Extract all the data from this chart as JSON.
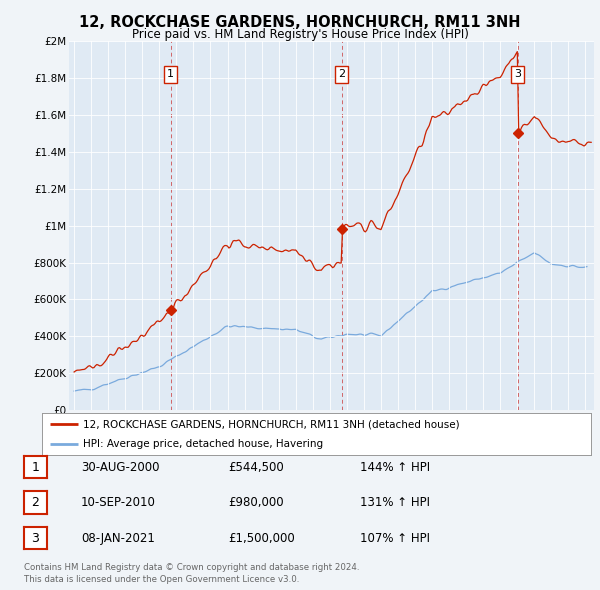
{
  "title": "12, ROCKCHASE GARDENS, HORNCHURCH, RM11 3NH",
  "subtitle": "Price paid vs. HM Land Registry's House Price Index (HPI)",
  "background_color": "#f0f4f8",
  "plot_bg": "#e0eaf4",
  "sale_dates": [
    2000.664,
    2010.692,
    2021.022
  ],
  "sale_prices": [
    544500,
    980000,
    1500000
  ],
  "sale_labels": [
    "1",
    "2",
    "3"
  ],
  "sale_date_strings": [
    "30-AUG-2000",
    "10-SEP-2010",
    "08-JAN-2021"
  ],
  "sale_price_strings": [
    "£544,500",
    "£980,000",
    "£1,500,000"
  ],
  "sale_hpi_strings": [
    "144%",
    "131%",
    "107%"
  ],
  "legend_line1": "12, ROCKCHASE GARDENS, HORNCHURCH, RM11 3NH (detached house)",
  "legend_line2": "HPI: Average price, detached house, Havering",
  "footer1": "Contains HM Land Registry data © Crown copyright and database right 2024.",
  "footer2": "This data is licensed under the Open Government Licence v3.0.",
  "red_color": "#cc2200",
  "blue_color": "#7aaadd",
  "ylim": [
    0,
    2000000
  ],
  "xlim": [
    1994.7,
    2025.5
  ],
  "yticks": [
    0,
    200000,
    400000,
    600000,
    800000,
    1000000,
    1200000,
    1400000,
    1600000,
    1800000,
    2000000
  ],
  "ytick_labels": [
    "£0",
    "£200K",
    "£400K",
    "£600K",
    "£800K",
    "£1M",
    "£1.2M",
    "£1.4M",
    "£1.6M",
    "£1.8M",
    "£2M"
  ],
  "xticks": [
    1995,
    1996,
    1997,
    1998,
    1999,
    2000,
    2001,
    2002,
    2003,
    2004,
    2005,
    2006,
    2007,
    2008,
    2009,
    2010,
    2011,
    2012,
    2013,
    2014,
    2015,
    2016,
    2017,
    2018,
    2019,
    2020,
    2021,
    2022,
    2023,
    2024,
    2025
  ]
}
